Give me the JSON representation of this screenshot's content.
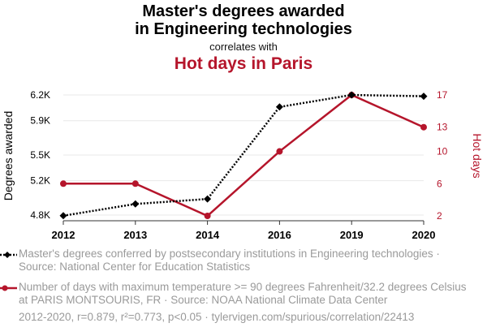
{
  "header": {
    "title_line1": "Master's degrees awarded",
    "title_line2": "in Engineering technologies",
    "correlates": "correlates with",
    "subtitle": "Hot days in Paris"
  },
  "colors": {
    "series1": "#000000",
    "series2": "#b5152b",
    "grid": "#e8e8e8",
    "muted": "#9a9a9a"
  },
  "chart_data": {
    "type": "line",
    "categories": [
      "2012",
      "2013",
      "2014",
      "2016",
      "2019",
      "2020"
    ],
    "left_axis": {
      "label": "Degrees awarded",
      "ticks": [
        {
          "v": 4800,
          "label": "4.8K"
        },
        {
          "v": 5200,
          "label": "5.2K"
        },
        {
          "v": 5500,
          "label": "5.5K"
        },
        {
          "v": 5900,
          "label": "5.9K"
        },
        {
          "v": 6200,
          "label": "6.2K"
        }
      ],
      "ylim": [
        4790,
        6200
      ]
    },
    "right_axis": {
      "label": "Hot days",
      "ticks": [
        {
          "v": 2,
          "label": "2"
        },
        {
          "v": 6,
          "label": "6"
        },
        {
          "v": 10,
          "label": "10"
        },
        {
          "v": 13,
          "label": "13"
        },
        {
          "v": 17,
          "label": "17"
        }
      ],
      "ylim": [
        2,
        17
      ]
    },
    "series": [
      {
        "name": "Master's degrees conferred by postsecondary institutions in Engineering technologies",
        "axis": "left",
        "style": "dotted",
        "marker": "diamond",
        "values": [
          4792,
          4929,
          4987,
          6060,
          6200,
          6185
        ]
      },
      {
        "name": "Hot days in Paris",
        "axis": "right",
        "style": "solid",
        "marker": "circle",
        "values": [
          6,
          6,
          2,
          10,
          17,
          13
        ]
      }
    ],
    "grid": true
  },
  "legend": {
    "item1": "Master's degrees conferred by postsecondary institutions in Engineering technologies · Source: National Center for Education Statistics",
    "item2": "Number of days with maximum temperature >= 90 degrees Fahrenheit/32.2 degrees Celsius at PARIS MONTSOURIS, FR · Source: NOAA National Climate Data Center"
  },
  "footer": "2012-2020, r=0.879, r²=0.773, p<0.05 · tylervigen.com/spurious/correlation/22413"
}
